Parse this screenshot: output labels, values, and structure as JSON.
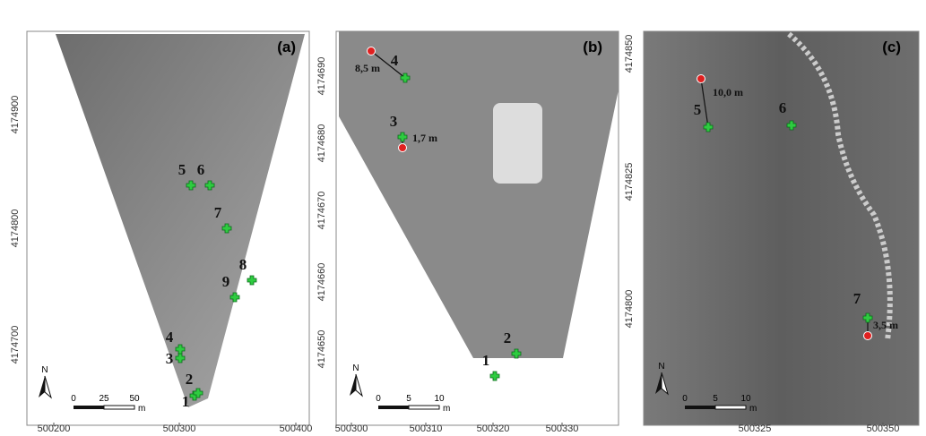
{
  "panels": [
    {
      "label": "(a)",
      "xticks": [
        500200,
        500300,
        500400
      ],
      "yticks": [
        4174700,
        4174800,
        4174900
      ],
      "points": [
        "1",
        "2",
        "3",
        "4",
        "5",
        "6",
        "7",
        "8",
        "9"
      ],
      "distances": [],
      "north": "N",
      "scale": [
        "0",
        "25",
        "50"
      ],
      "unit": "m"
    },
    {
      "label": "(b)",
      "xticks": [
        500300,
        500310,
        500320,
        500330
      ],
      "yticks": [
        4174650,
        4174660,
        4174670,
        4174680,
        4174690
      ],
      "points": [
        "1",
        "2",
        "3",
        "4"
      ],
      "distances": [
        "1,7 m",
        "8,5 m"
      ],
      "north": "N",
      "scale": [
        "0",
        "5",
        "10"
      ],
      "unit": "m"
    },
    {
      "label": "(c)",
      "xticks": [
        500325,
        500350
      ],
      "yticks": [
        4174800,
        4174825,
        4174850
      ],
      "points": [
        "5",
        "6",
        "7"
      ],
      "distances": [
        "10,0 m",
        "3,5 m"
      ],
      "north": "N",
      "scale": [
        "0",
        "5",
        "10"
      ],
      "unit": "m"
    }
  ]
}
